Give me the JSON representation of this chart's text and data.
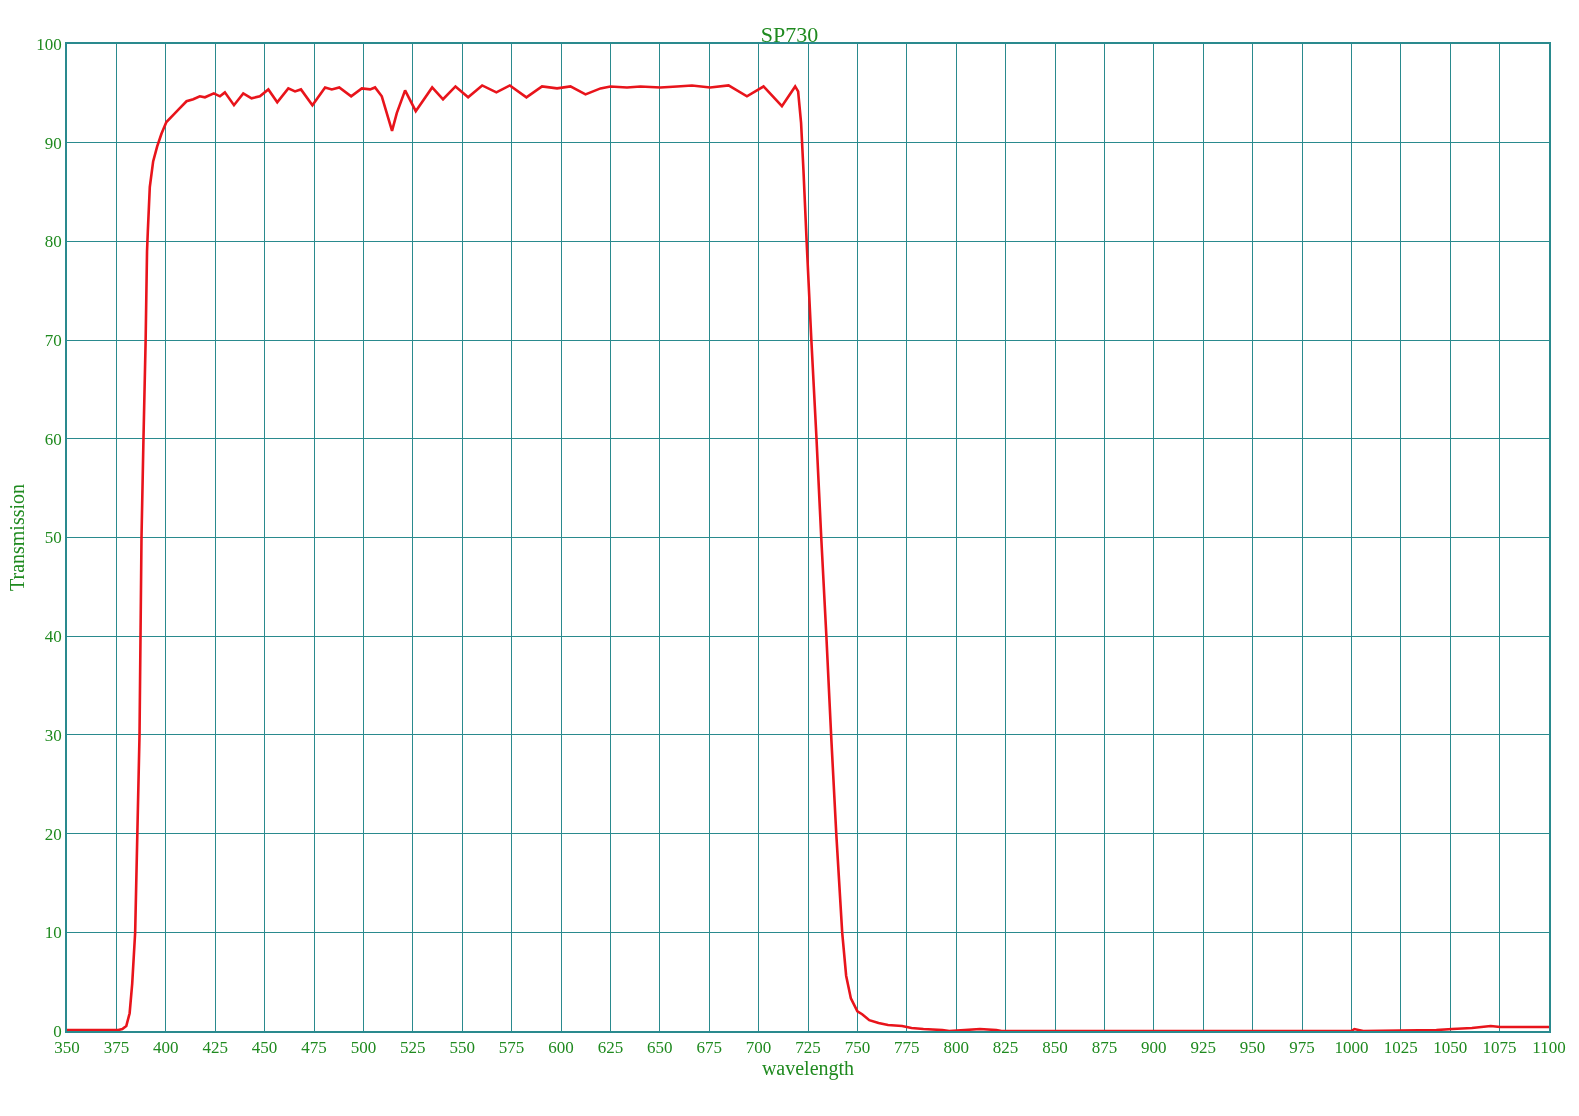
{
  "chart_data": {
    "type": "line",
    "title": "SP730",
    "xlabel": "wavelength",
    "ylabel": "Transmission",
    "x": [
      350,
      376,
      378,
      380,
      381.7,
      383,
      384.5,
      386.7,
      387.7,
      388.7,
      389.8,
      390.5,
      390.9,
      391.9,
      393.6,
      395.6,
      397.8,
      400.3,
      403.7,
      407.1,
      410.5,
      413.9,
      417.2,
      419.8,
      424.3,
      427.4,
      429.9,
      434.5,
      439.2,
      443.4,
      447.6,
      451.9,
      456.4,
      462.0,
      465.4,
      468.4,
      474.2,
      480.6,
      484.0,
      487.8,
      493.8,
      499.2,
      503.4,
      505.9,
      509.3,
      514.5,
      516.9,
      521.1,
      526.5,
      534.8,
      540.3,
      546.6,
      553.0,
      560.1,
      567.3,
      574.1,
      582.5,
      590.4,
      598.0,
      604.8,
      612.4,
      620.0,
      625.0,
      633.4,
      640.2,
      650.3,
      658.7,
      666.3,
      675.5,
      684.8,
      694.1,
      702.5,
      711.8,
      718.5,
      720.0,
      721.5,
      722.7,
      724.3,
      726.7,
      729.3,
      731.7,
      734.3,
      736.7,
      739.3,
      742.3,
      744.3,
      746.7,
      750.0,
      752.4,
      756.0,
      760.7,
      765.5,
      772.6,
      777.4,
      783.4,
      793.0,
      796.5,
      812.0,
      820.3,
      823.0,
      1000.0,
      1001.5,
      1006.0,
      1043.0,
      1051.0,
      1061.0,
      1070.5,
      1075.3,
      1080.0,
      1100.0
    ],
    "series": [
      {
        "color": "#e8141b",
        "values": [
          0.1,
          0.1,
          0.2,
          0.5,
          1.8,
          4.8,
          10,
          30,
          50,
          60,
          70,
          79,
          81,
          85.5,
          88.1,
          89.6,
          90.9,
          92.1,
          92.8,
          93.5,
          94.2,
          94.4,
          94.7,
          94.6,
          95.0,
          94.7,
          95.1,
          93.8,
          95.0,
          94.5,
          94.7,
          95.4,
          94.1,
          95.5,
          95.2,
          95.4,
          93.8,
          95.6,
          95.4,
          95.6,
          94.7,
          95.5,
          95.4,
          95.6,
          94.7,
          91.2,
          93.0,
          95.3,
          93.2,
          95.6,
          94.4,
          95.7,
          94.6,
          95.8,
          95.1,
          95.8,
          94.6,
          95.7,
          95.5,
          95.7,
          94.9,
          95.5,
          95.7,
          95.6,
          95.7,
          95.6,
          95.7,
          95.8,
          95.6,
          95.8,
          94.7,
          95.7,
          93.7,
          95.7,
          95.2,
          92.0,
          87.2,
          80,
          70,
          60,
          50,
          40,
          30,
          20,
          10,
          5.6,
          3.3,
          2.0,
          1.7,
          1.1,
          0.8,
          0.6,
          0.5,
          0.3,
          0.2,
          0.1,
          0.0,
          0.2,
          0.1,
          0.0,
          0.0,
          0.2,
          0.0,
          0.1,
          0.2,
          0.3,
          0.5,
          0.4,
          0.4,
          0.4
        ]
      }
    ],
    "xlim": [
      350,
      1100
    ],
    "ylim": [
      0,
      100
    ],
    "xticks": [
      350,
      375,
      400,
      425,
      450,
      475,
      500,
      525,
      550,
      575,
      600,
      625,
      650,
      675,
      700,
      725,
      750,
      775,
      800,
      825,
      850,
      875,
      900,
      925,
      950,
      975,
      1000,
      1025,
      1050,
      1075,
      1100
    ],
    "yticks": [
      0,
      10,
      20,
      30,
      40,
      50,
      60,
      70,
      80,
      90,
      100
    ],
    "grid": true,
    "line_style": "solid"
  }
}
